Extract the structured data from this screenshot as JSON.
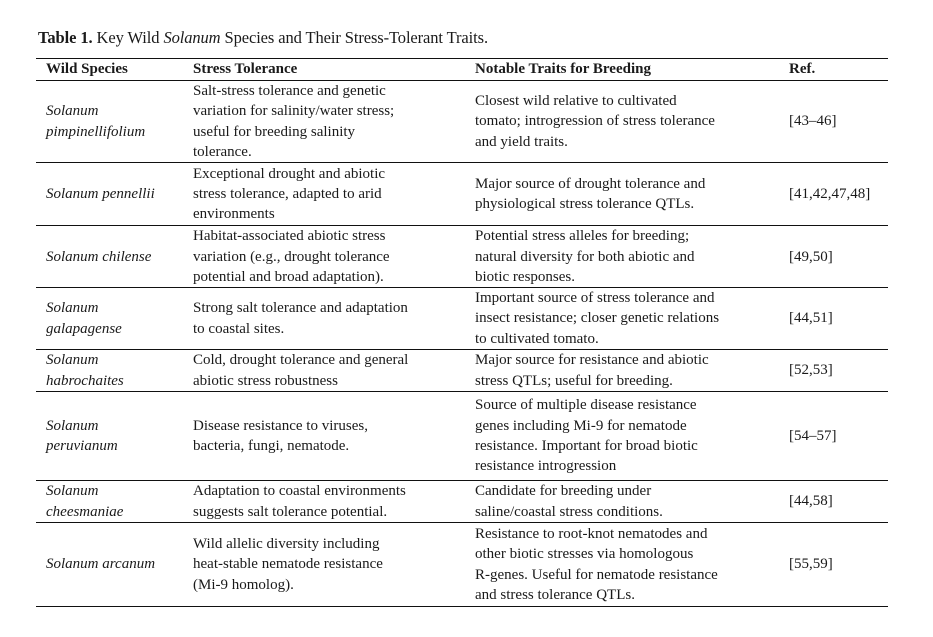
{
  "caption": {
    "label": "Table 1.",
    "text_before": " Key Wild ",
    "italic": "Solanum",
    "text_after": " Species and Their Stress-Tolerant Traits."
  },
  "headers": [
    "Wild Species",
    "Stress Tolerance",
    "Notable Traits for Breeding",
    "Ref."
  ],
  "rows": [
    {
      "species": [
        "Solanum",
        "pimpinellifolium"
      ],
      "stress": [
        "Salt-stress tolerance and genetic",
        "variation for salinity/water stress;",
        "useful for breeding salinity",
        "tolerance."
      ],
      "traits": [
        "Closest wild relative to cultivated",
        "tomato; introgression of stress tolerance",
        "and yield traits."
      ],
      "ref": [
        "[43–46]"
      ]
    },
    {
      "species": [
        "Solanum pennellii"
      ],
      "stress": [
        "Exceptional drought and abiotic",
        "stress tolerance, adapted to arid",
        "environments"
      ],
      "traits": [
        "Major source of drought tolerance and",
        "physiological stress tolerance QTLs."
      ],
      "ref": [
        "[41,42,47,48]"
      ]
    },
    {
      "species": [
        "Solanum chilense"
      ],
      "stress": [
        "Habitat-associated abiotic stress",
        "variation (e.g., drought tolerance",
        "potential and broad adaptation)."
      ],
      "traits": [
        "Potential stress alleles for breeding;",
        "natural diversity for both abiotic and",
        "biotic responses."
      ],
      "ref": [
        "[49,50]"
      ]
    },
    {
      "species": [
        "Solanum",
        "galapagense"
      ],
      "stress": [
        "Strong salt tolerance and adaptation",
        "to coastal sites."
      ],
      "traits": [
        "Important source of stress tolerance and",
        "insect resistance; closer genetic relations",
        "to cultivated tomato."
      ],
      "ref": [
        "[44,51]"
      ]
    },
    {
      "species": [
        "Solanum",
        "habrochaites"
      ],
      "stress": [
        "Cold, drought tolerance and general",
        "abiotic stress robustness"
      ],
      "traits": [
        "Major source for resistance and abiotic",
        "stress QTLs; useful for breeding."
      ],
      "ref": [
        "[52,53]"
      ]
    },
    {
      "species": [
        "Solanum",
        "peruvianum"
      ],
      "stress": [
        "Disease resistance to viruses,",
        "bacteria, fungi, nematode."
      ],
      "traits": [
        "Source of multiple disease resistance",
        "genes including Mi-9 for nematode",
        "resistance. Important for broad biotic",
        "resistance introgression"
      ],
      "ref": [
        "[54–57]"
      ]
    },
    {
      "species": [
        "Solanum",
        "cheesmaniae"
      ],
      "stress": [
        "Adaptation to coastal environments",
        "suggests salt tolerance potential."
      ],
      "traits": [
        "Candidate for breeding under",
        "saline/coastal stress conditions."
      ],
      "ref": [
        "[44,58]"
      ]
    },
    {
      "species": [
        "Solanum arcanum"
      ],
      "stress": [
        "Wild allelic diversity including",
        "heat-stable nematode resistance",
        "(Mi-9 homolog)."
      ],
      "traits": [
        "Resistance to root-knot nematodes and",
        "other biotic stresses via homologous",
        "R-genes. Useful for nematode resistance",
        "and stress tolerance QTLs."
      ],
      "ref": [
        "[55,59]"
      ]
    }
  ]
}
